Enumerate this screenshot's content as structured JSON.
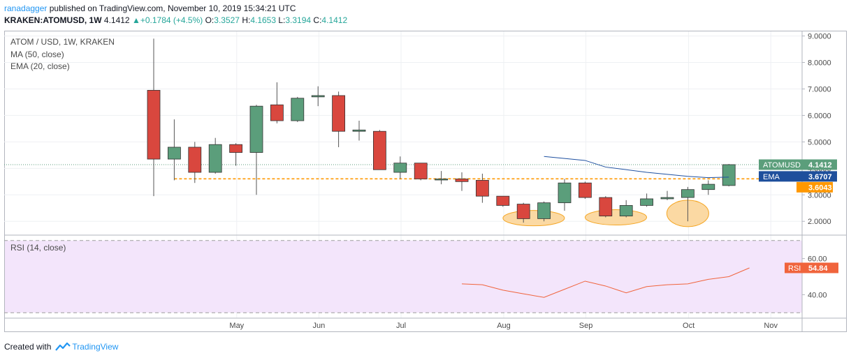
{
  "header": {
    "user": "ranadagger",
    "published": " published on TradingView.com, November 10, 2019 15:34:21 UTC"
  },
  "ticker": {
    "symbol": "KRAKEN:ATOMUSD, 1W",
    "last": "4.1412",
    "change": "+0.1784 (+4.5%)",
    "o_label": "O:",
    "o": "3.3527",
    "h_label": "H:",
    "h": "4.1653",
    "l_label": "L:",
    "l": "3.3194",
    "c_label": "C:",
    "c": "4.1412"
  },
  "legend": {
    "title": "ATOM / USD, 1W, KRAKEN",
    "ma": "MA (50, close)",
    "ema": "EMA (20, close)",
    "rsi": "RSI (14, close)"
  },
  "footer": {
    "created_with": "Created with",
    "brand": "TradingView"
  },
  "colors": {
    "up": "#26a69a",
    "down": "#ef5350",
    "up_fill": "#5b9e7b",
    "down_fill": "#d9473e",
    "ema": "#1e50a0",
    "support": "#ff9800",
    "rsi": "#f0643c",
    "rsi_band": "#f3e5fb"
  },
  "chart_data": [
    {
      "type": "candlestick",
      "title": "ATOM / USD, 1W, KRAKEN",
      "y_scale": "linear",
      "ylim": [
        1.4,
        9.2
      ],
      "y_ticks": [
        "9.0000",
        "8.0000",
        "7.0000",
        "6.0000",
        "5.0000",
        "4.0000",
        "3.0000",
        "2.0000"
      ],
      "x_ticks": [
        {
          "label": "May",
          "i": 2
        },
        {
          "label": "Jun",
          "i": 6
        },
        {
          "label": "Jul",
          "i": 10
        },
        {
          "label": "Aug",
          "i": 15
        },
        {
          "label": "Sep",
          "i": 19
        },
        {
          "label": "Oct",
          "i": 24
        },
        {
          "label": "Nov",
          "i": 28
        }
      ],
      "n_slots": 32,
      "candles": [
        {
          "o": 6.95,
          "h": 8.9,
          "l": 2.95,
          "c": 4.35
        },
        {
          "o": 4.35,
          "h": 5.85,
          "l": 3.55,
          "c": 4.8
        },
        {
          "o": 4.8,
          "h": 5.0,
          "l": 3.45,
          "c": 3.85
        },
        {
          "o": 3.85,
          "h": 5.15,
          "l": 3.8,
          "c": 4.9
        },
        {
          "o": 4.9,
          "h": 4.95,
          "l": 4.1,
          "c": 4.6
        },
        {
          "o": 4.6,
          "h": 6.4,
          "l": 3.0,
          "c": 6.35
        },
        {
          "o": 6.4,
          "h": 7.25,
          "l": 5.7,
          "c": 5.8
        },
        {
          "o": 5.8,
          "h": 6.7,
          "l": 5.75,
          "c": 6.65
        },
        {
          "o": 6.7,
          "h": 7.1,
          "l": 6.35,
          "c": 6.75
        },
        {
          "o": 6.75,
          "h": 6.9,
          "l": 4.8,
          "c": 5.4
        },
        {
          "o": 5.4,
          "h": 5.8,
          "l": 5.05,
          "c": 5.45
        },
        {
          "o": 5.4,
          "h": 5.45,
          "l": 3.95,
          "c": 3.95
        },
        {
          "o": 3.85,
          "h": 4.45,
          "l": 3.6,
          "c": 4.2
        },
        {
          "o": 4.2,
          "h": 4.2,
          "l": 3.55,
          "c": 3.6
        },
        {
          "o": 3.6,
          "h": 3.9,
          "l": 3.4,
          "c": 3.6
        },
        {
          "o": 3.6,
          "h": 3.85,
          "l": 3.15,
          "c": 3.5
        },
        {
          "o": 3.55,
          "h": 3.8,
          "l": 2.7,
          "c": 2.95
        },
        {
          "o": 2.95,
          "h": 2.95,
          "l": 2.55,
          "c": 2.6
        },
        {
          "o": 2.65,
          "h": 2.7,
          "l": 1.95,
          "c": 2.1
        },
        {
          "o": 2.1,
          "h": 2.75,
          "l": 2.0,
          "c": 2.7
        },
        {
          "o": 2.7,
          "h": 3.6,
          "l": 2.4,
          "c": 3.45
        },
        {
          "o": 3.45,
          "h": 3.5,
          "l": 2.85,
          "c": 2.9
        },
        {
          "o": 2.9,
          "h": 2.95,
          "l": 2.15,
          "c": 2.2
        },
        {
          "o": 2.2,
          "h": 2.8,
          "l": 2.15,
          "c": 2.6
        },
        {
          "o": 2.6,
          "h": 3.05,
          "l": 2.55,
          "c": 2.85
        },
        {
          "o": 2.85,
          "h": 3.15,
          "l": 2.8,
          "c": 2.9
        },
        {
          "o": 2.9,
          "h": 3.3,
          "l": 2.0,
          "c": 3.2
        },
        {
          "o": 3.2,
          "h": 3.55,
          "l": 3.0,
          "c": 3.4
        },
        {
          "o": 3.3527,
          "h": 4.1653,
          "l": 3.3194,
          "c": 4.1412
        }
      ],
      "ema": {
        "name": "EMA",
        "values": [
          {
            "i": 19,
            "v": 4.45
          },
          {
            "i": 21,
            "v": 4.3
          },
          {
            "i": 22,
            "v": 4.05
          },
          {
            "i": 24,
            "v": 3.85
          },
          {
            "i": 26,
            "v": 3.7
          },
          {
            "i": 27,
            "v": 3.65
          },
          {
            "i": 28,
            "v": 3.6707
          }
        ]
      },
      "support_level": 3.6043,
      "support_from_i": 1,
      "labels": [
        {
          "name": "ATOMUSD",
          "value": "4.1412",
          "y": 4.1412
        },
        {
          "name": "EMA",
          "value": "3.6707",
          "y": 3.6707
        },
        {
          "name": "",
          "value": "3.6043",
          "y": 3.6043
        }
      ],
      "annotations": [
        {
          "type": "ellipse",
          "i_center": 18.5,
          "y_center": 2.12
        },
        {
          "type": "ellipse",
          "i_center": 22.5,
          "y_center": 2.15
        },
        {
          "type": "ellipse",
          "i_center": 26.0,
          "y_center": 2.3
        }
      ]
    },
    {
      "type": "line",
      "title": "RSI (14, close)",
      "ylim": [
        27,
        73
      ],
      "y_ticks": [
        "60.00",
        "40.00"
      ],
      "band": [
        30,
        70
      ],
      "series": [
        {
          "name": "RSI",
          "points": [
            {
              "i": 15,
              "v": 46.0
            },
            {
              "i": 16,
              "v": 45.5
            },
            {
              "i": 17,
              "v": 42.5
            },
            {
              "i": 18,
              "v": 40.5
            },
            {
              "i": 19,
              "v": 38.5
            },
            {
              "i": 20,
              "v": 43.0
            },
            {
              "i": 21,
              "v": 47.5
            },
            {
              "i": 22,
              "v": 44.8
            },
            {
              "i": 23,
              "v": 41.0
            },
            {
              "i": 24,
              "v": 44.5
            },
            {
              "i": 25,
              "v": 45.5
            },
            {
              "i": 26,
              "v": 46.0
            },
            {
              "i": 27,
              "v": 48.5
            },
            {
              "i": 28,
              "v": 50.0
            },
            {
              "i": 29,
              "v": 54.84
            }
          ]
        }
      ],
      "label": {
        "name": "RSI",
        "value": "54.84",
        "y": 54.84
      }
    }
  ]
}
